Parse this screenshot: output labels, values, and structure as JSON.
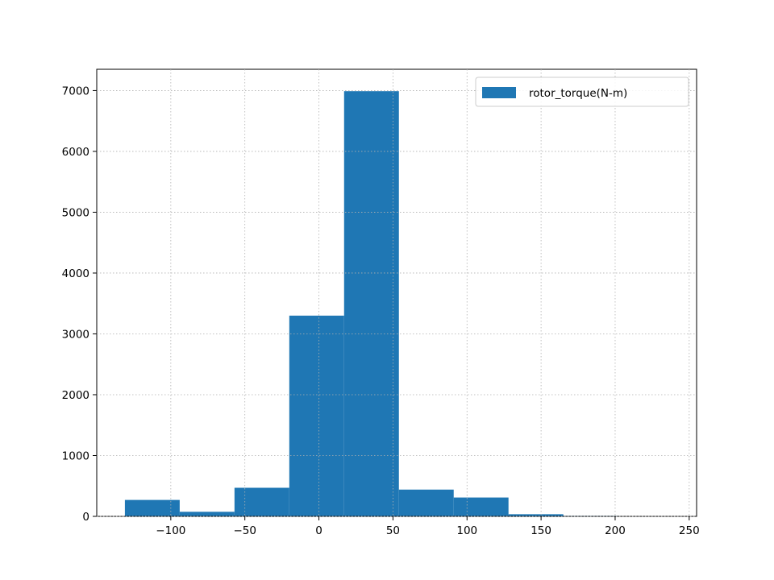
{
  "chart_data": {
    "type": "bar",
    "title": "",
    "xlabel": "",
    "ylabel": "",
    "xlim": [
      -150,
      255
    ],
    "ylim": [
      0,
      7350
    ],
    "grid": true,
    "legend_position": "top-right",
    "bar_color": "#1f77b4",
    "bin_edges": [
      -131,
      -94,
      -57,
      -20,
      17,
      54,
      91,
      128,
      165,
      202,
      239
    ],
    "values": [
      270,
      75,
      470,
      3300,
      6990,
      440,
      310,
      35,
      8,
      5
    ],
    "series": [
      {
        "name": "rotor_torque(N-m)",
        "color": "#1f77b4"
      }
    ],
    "x_ticks": [
      {
        "value": -100,
        "label": "−100"
      },
      {
        "value": -50,
        "label": "−50"
      },
      {
        "value": 0,
        "label": "0"
      },
      {
        "value": 50,
        "label": "50"
      },
      {
        "value": 100,
        "label": "100"
      },
      {
        "value": 150,
        "label": "150"
      },
      {
        "value": 200,
        "label": "200"
      },
      {
        "value": 250,
        "label": "250"
      }
    ],
    "y_ticks": [
      {
        "value": 0,
        "label": "0"
      },
      {
        "value": 1000,
        "label": "1000"
      },
      {
        "value": 2000,
        "label": "2000"
      },
      {
        "value": 3000,
        "label": "3000"
      },
      {
        "value": 4000,
        "label": "4000"
      },
      {
        "value": 5000,
        "label": "5000"
      },
      {
        "value": 6000,
        "label": "6000"
      },
      {
        "value": 7000,
        "label": "7000"
      }
    ]
  }
}
